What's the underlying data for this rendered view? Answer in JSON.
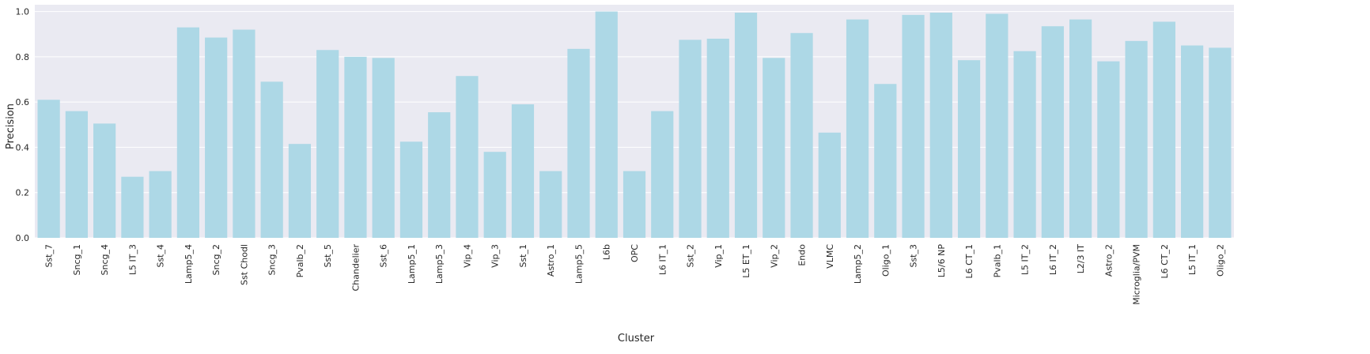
{
  "chart_data": {
    "type": "bar",
    "title": "",
    "xlabel": "Cluster",
    "ylabel": "Precision",
    "ylim": [
      0,
      1.03
    ],
    "yticks": [
      "0.0",
      "0.2",
      "0.4",
      "0.6",
      "0.8",
      "1.0"
    ],
    "grid": true,
    "legend": "none",
    "categories": [
      "Sst_7",
      "Sncg_1",
      "Sncg_4",
      "L5 IT_3",
      "Sst_4",
      "Lamp5_4",
      "Sncg_2",
      "Sst Chodl",
      "Sncg_3",
      "Pvalb_2",
      "Sst_5",
      "Chandelier",
      "Sst_6",
      "Lamp5_1",
      "Lamp5_3",
      "Vip_4",
      "Vip_3",
      "Sst_1",
      "Astro_1",
      "Lamp5_5",
      "L6b",
      "OPC",
      "L6 IT_1",
      "Sst_2",
      "Vip_1",
      "L5 ET_1",
      "Vip_2",
      "Endo",
      "VLMC",
      "Lamp5_2",
      "Oligo_1",
      "Sst_3",
      "L5/6 NP",
      "L6 CT_1",
      "Pvalb_1",
      "L5 IT_2",
      "L6 IT_2",
      "L2/3 IT",
      "Astro_2",
      "Microglia/PVM",
      "L6 CT_2",
      "L5 IT_1",
      "Oligo_2"
    ],
    "values": [
      0.61,
      0.56,
      0.505,
      0.27,
      0.295,
      0.93,
      0.885,
      0.92,
      0.69,
      0.415,
      0.83,
      0.8,
      0.795,
      0.425,
      0.555,
      0.715,
      0.38,
      0.59,
      0.295,
      0.835,
      1.0,
      0.295,
      0.56,
      0.875,
      0.88,
      0.995,
      0.795,
      0.905,
      0.465,
      0.965,
      0.68,
      0.985,
      0.995,
      0.785,
      0.99,
      0.825,
      0.935,
      0.965,
      0.78,
      0.87,
      0.955,
      0.85,
      0.84
    ],
    "colors": {
      "bar": "#add8e6",
      "plot_background": "#eaeaf2",
      "grid": "#ffffff"
    }
  }
}
